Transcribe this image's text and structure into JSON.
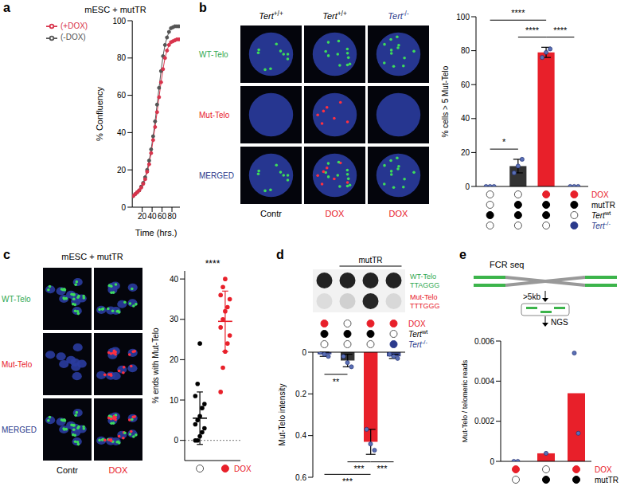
{
  "chart_data": [
    {
      "panel": "a",
      "type": "line",
      "title": "mESC + mutTR",
      "x_label": "Time (hrs.)",
      "y_label": "% Confluency",
      "x": [
        2,
        6,
        10,
        14,
        18,
        22,
        26,
        30,
        34,
        38,
        42,
        46,
        50,
        54,
        58,
        62,
        66,
        70,
        74,
        78,
        82,
        86,
        90,
        94
      ],
      "series": [
        {
          "name": "(-DOX)",
          "color": "#555555",
          "marker": "circle",
          "line_style": "solid",
          "values": [
            6,
            7,
            8,
            9,
            11,
            13,
            16,
            20,
            25,
            31,
            38,
            46,
            55,
            64,
            73,
            81,
            87,
            91,
            94,
            96,
            96.5,
            97,
            97,
            97
          ]
        },
        {
          "name": "(+DOX)",
          "color": "#d8344c",
          "marker": "circle",
          "line_style": "solid",
          "values": [
            6,
            7,
            8,
            9,
            10.5,
            12.5,
            15,
            19,
            23,
            29,
            36,
            43,
            51,
            59,
            67,
            74,
            80,
            84,
            87,
            88.5,
            89,
            89.5,
            90,
            90
          ]
        }
      ],
      "xlim": [
        0,
        96
      ],
      "xticks": [
        20,
        40,
        60,
        80
      ],
      "ylim": [
        0,
        100
      ],
      "yticks": [
        0,
        20,
        40,
        60,
        80,
        100
      ],
      "legend": "top-left"
    },
    {
      "panel": "b",
      "type": "bar",
      "y_label": "% cells > 5 Mut-Telo",
      "categories": [
        null,
        null,
        null,
        null
      ],
      "values": [
        0,
        12,
        79,
        0
      ],
      "errors": [
        0,
        4,
        3,
        0
      ],
      "points": [
        [
          0,
          0,
          0
        ],
        [
          8,
          12,
          16
        ],
        [
          76,
          79,
          81
        ],
        [
          0,
          0,
          0
        ]
      ],
      "colors": [
        "#333333",
        "#333333",
        "#e8202a",
        "#2b3a8c"
      ],
      "ylim": [
        0,
        100
      ],
      "yticks": [
        0,
        20,
        40,
        60,
        80,
        100
      ],
      "significance": [
        {
          "from": 0,
          "to": 1,
          "label": "*"
        },
        {
          "from": 0,
          "to": 2,
          "label": "****"
        },
        {
          "from": 1,
          "to": 2,
          "label": "****"
        },
        {
          "from": 2,
          "to": 3,
          "label": "****"
        }
      ],
      "conditions": [
        {
          "label": "DOX",
          "color": "#e8202a",
          "present": [
            false,
            false,
            true,
            true
          ]
        },
        {
          "label": "mutTR",
          "color": "#000000",
          "present": [
            false,
            true,
            true,
            true
          ]
        },
        {
          "label": "Tert",
          "sup": "wt",
          "color": "#000000",
          "present": [
            true,
            true,
            true,
            false
          ]
        },
        {
          "label": "Tert",
          "sup": "-/-",
          "color": "#2b3a8c",
          "present": [
            false,
            false,
            false,
            true
          ]
        }
      ],
      "micrograph": {
        "columns": [
          {
            "label": "Tert",
            "sup": "+/+",
            "color": "#000000"
          },
          {
            "label": "Tert",
            "sup": "+/+",
            "color": "#000000"
          },
          {
            "label": "Tert",
            "sup": "-/-",
            "color": "#2b3a8c"
          }
        ],
        "rows": [
          {
            "label": "WT-Telo",
            "color": "#2fa84f"
          },
          {
            "label": "Mut-Telo",
            "color": "#e8202a"
          },
          {
            "label": "MERGED",
            "color": "#2b3a8c"
          }
        ],
        "bottom": [
          {
            "label": "Contr",
            "color": "#000000"
          },
          {
            "label": "DOX",
            "color": "#e8202a"
          },
          {
            "label": "DOX",
            "color": "#e8202a"
          }
        ]
      }
    },
    {
      "panel": "c",
      "type": "scatter",
      "y_label": "% ends with Mut-Telo",
      "ylim": [
        -5,
        42
      ],
      "yticks": [
        0,
        10,
        20,
        30,
        40
      ],
      "groups": [
        {
          "color": "#000000",
          "values": [
            0,
            0,
            1,
            2,
            3,
            4,
            5,
            6,
            8,
            9,
            11,
            14,
            24
          ],
          "mean": 5.5,
          "sd": 6.5
        },
        {
          "color": "#e8202a",
          "values": [
            12,
            18,
            22,
            24,
            26,
            28,
            30,
            32,
            33,
            35,
            36,
            38,
            40
          ],
          "mean": 29.5,
          "sd": 7.5
        }
      ],
      "significance": [
        {
          "from": 0,
          "to": 1,
          "label": "****"
        }
      ],
      "conditions": [
        {
          "label": "DOX",
          "color": "#e8202a",
          "present": [
            false,
            true
          ]
        }
      ],
      "micrograph": {
        "title": "mESC + mutTR",
        "rows": [
          {
            "label": "WT-Telo",
            "color": "#2fa84f"
          },
          {
            "label": "Mut-Telo",
            "color": "#e8202a"
          },
          {
            "label": "MERGED",
            "color": "#2b3a8c"
          }
        ],
        "bottom": [
          {
            "label": "Contr",
            "color": "#000000"
          },
          {
            "label": "DOX",
            "color": "#e8202a"
          }
        ]
      }
    },
    {
      "panel": "d",
      "type": "bar",
      "y_label": "Mut-Telo intensity",
      "categories": [
        null,
        null,
        null,
        null
      ],
      "values": [
        0.01,
        0.04,
        0.43,
        0.02
      ],
      "errors": [
        0.01,
        0.03,
        0.06,
        0.01
      ],
      "points": [
        [
          0,
          0.01,
          0.02
        ],
        [
          0.02,
          0.05,
          0.07
        ],
        [
          0.37,
          0.44,
          0.47
        ],
        [
          0.01,
          0.02,
          0.03
        ]
      ],
      "colors": [
        "#3d4a8f",
        "#333333",
        "#e8202a",
        "#3d4a8f"
      ],
      "ylim": [
        0.6,
        0
      ],
      "yticks": [
        0,
        0.2,
        0.4,
        0.6
      ],
      "significance": [
        {
          "from": 0,
          "to": 1,
          "label": "**"
        },
        {
          "from": 0,
          "to": 2,
          "label": "***"
        },
        {
          "from": 1,
          "to": 2,
          "label": "***"
        },
        {
          "from": 2,
          "to": 3,
          "label": "***"
        }
      ],
      "conditions": [
        {
          "label": "DOX",
          "color": "#e8202a",
          "present": [
            true,
            false,
            true,
            true
          ]
        },
        {
          "label": "Tert",
          "sup": "wt",
          "color": "#000000",
          "present": [
            true,
            true,
            true,
            false
          ]
        },
        {
          "label": "Tert",
          "sup": "-/-",
          "color": "#2b3a8c",
          "present": [
            false,
            false,
            false,
            true
          ]
        }
      ],
      "blot": {
        "rows": [
          {
            "label": "WT-Telo",
            "sequence": "TTAGGG",
            "color": "#2fa84f"
          },
          {
            "label": "Mut-Telo",
            "sequence": "TTTGGG",
            "color": "#e8202a"
          }
        ],
        "group_label": "mutTR",
        "group": [
          1,
          3
        ]
      }
    },
    {
      "panel": "e",
      "type": "bar",
      "y_label": "Mut-Telo / telomeric reads",
      "categories": [
        null,
        null,
        null
      ],
      "values": [
        0,
        0.0004,
        0.0034
      ],
      "points": [
        [
          0,
          0
        ],
        [
          0.0004
        ],
        [
          0.0054,
          0.0014
        ]
      ],
      "colors": [
        "#e8202a",
        "#e8202a",
        "#e8202a"
      ],
      "ylim": [
        0,
        0.006
      ],
      "yticks": [
        0,
        0.002,
        0.004,
        0.006
      ],
      "conditions": [
        {
          "label": "DOX",
          "color": "#e8202a",
          "present": [
            true,
            false,
            true
          ]
        },
        {
          "label": "mutTR",
          "color": "#000000",
          "present": [
            false,
            true,
            true
          ]
        }
      ],
      "diagram": {
        "title": "FCR seq",
        "size_label": ">5kb",
        "method": "NGS"
      }
    }
  ]
}
